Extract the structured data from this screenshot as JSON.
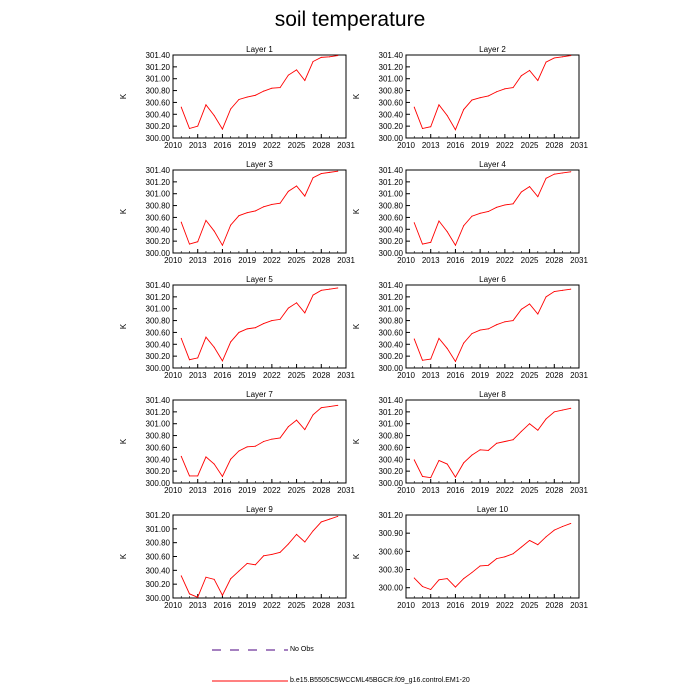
{
  "title": "soil temperature",
  "legend": {
    "obs_label": "No Obs",
    "obs_color": "#4b0082",
    "model_label": "b.e15.B5505C5WCCML45BGCR.f09_g16.control.EM1-20",
    "model_color": "#ff0000"
  },
  "chart_data": [
    {
      "type": "line",
      "title": "Layer 1",
      "ylabel": "K",
      "xlim": [
        2010,
        2031
      ],
      "ylim": [
        300.0,
        301.4
      ],
      "xticks": [
        "2010",
        "2013",
        "2016",
        "2019",
        "2022",
        "2025",
        "2028",
        "2031"
      ],
      "yticks": [
        "300.00",
        "300.20",
        "300.40",
        "300.60",
        "300.80",
        "301.00",
        "301.20",
        "301.40"
      ],
      "ytick_values": [
        300.0,
        300.2,
        300.4,
        300.6,
        300.8,
        301.0,
        301.2,
        301.4
      ],
      "x": [
        2011,
        2012,
        2013,
        2014,
        2015,
        2016,
        2017,
        2018,
        2019,
        2020,
        2021,
        2022,
        2023,
        2024,
        2025,
        2026,
        2027,
        2028,
        2029,
        2030
      ],
      "series": [
        {
          "values": [
            300.52,
            300.16,
            300.2,
            300.56,
            300.38,
            300.15,
            300.49,
            300.65,
            300.69,
            300.72,
            300.79,
            300.84,
            300.85,
            301.06,
            301.15,
            300.97,
            301.29,
            301.36,
            301.37,
            301.39
          ]
        }
      ]
    },
    {
      "type": "line",
      "title": "Layer 2",
      "ylabel": "K",
      "xlim": [
        2010,
        2031
      ],
      "ylim": [
        300.0,
        301.4
      ],
      "xticks": [
        "2010",
        "2013",
        "2016",
        "2019",
        "2022",
        "2025",
        "2028",
        "2031"
      ],
      "yticks": [
        "300.00",
        "300.20",
        "300.40",
        "300.60",
        "300.80",
        "301.00",
        "301.20",
        "301.40"
      ],
      "ytick_values": [
        300.0,
        300.2,
        300.4,
        300.6,
        300.8,
        301.0,
        301.2,
        301.4
      ],
      "x": [
        2011,
        2012,
        2013,
        2014,
        2015,
        2016,
        2017,
        2018,
        2019,
        2020,
        2021,
        2022,
        2023,
        2024,
        2025,
        2026,
        2027,
        2028,
        2029,
        2030
      ],
      "series": [
        {
          "values": [
            300.52,
            300.16,
            300.19,
            300.56,
            300.38,
            300.14,
            300.48,
            300.64,
            300.68,
            300.71,
            300.78,
            300.83,
            300.85,
            301.05,
            301.14,
            300.97,
            301.28,
            301.35,
            301.37,
            301.39
          ]
        }
      ]
    },
    {
      "type": "line",
      "title": "Layer 3",
      "ylabel": "K",
      "xlim": [
        2010,
        2031
      ],
      "ylim": [
        300.0,
        301.4
      ],
      "xticks": [
        "2010",
        "2013",
        "2016",
        "2019",
        "2022",
        "2025",
        "2028",
        "2031"
      ],
      "yticks": [
        "300.00",
        "300.20",
        "300.40",
        "300.60",
        "300.80",
        "301.00",
        "301.20",
        "301.40"
      ],
      "ytick_values": [
        300.0,
        300.2,
        300.4,
        300.6,
        300.8,
        301.0,
        301.2,
        301.4
      ],
      "x": [
        2011,
        2012,
        2013,
        2014,
        2015,
        2016,
        2017,
        2018,
        2019,
        2020,
        2021,
        2022,
        2023,
        2024,
        2025,
        2026,
        2027,
        2028,
        2029,
        2030
      ],
      "series": [
        {
          "values": [
            300.52,
            300.15,
            300.19,
            300.55,
            300.37,
            300.13,
            300.47,
            300.63,
            300.68,
            300.71,
            300.78,
            300.82,
            300.84,
            301.04,
            301.13,
            300.96,
            301.27,
            301.34,
            301.36,
            301.38
          ]
        }
      ]
    },
    {
      "type": "line",
      "title": "Layer 4",
      "ylabel": "K",
      "xlim": [
        2010,
        2031
      ],
      "ylim": [
        300.0,
        301.4
      ],
      "xticks": [
        "2010",
        "2013",
        "2016",
        "2019",
        "2022",
        "2025",
        "2028",
        "2031"
      ],
      "yticks": [
        "300.00",
        "300.20",
        "300.40",
        "300.60",
        "300.80",
        "301.00",
        "301.20",
        "301.40"
      ],
      "ytick_values": [
        300.0,
        300.2,
        300.4,
        300.6,
        300.8,
        301.0,
        301.2,
        301.4
      ],
      "x": [
        2011,
        2012,
        2013,
        2014,
        2015,
        2016,
        2017,
        2018,
        2019,
        2020,
        2021,
        2022,
        2023,
        2024,
        2025,
        2026,
        2027,
        2028,
        2029,
        2030
      ],
      "series": [
        {
          "values": [
            300.51,
            300.15,
            300.18,
            300.54,
            300.36,
            300.13,
            300.46,
            300.62,
            300.67,
            300.7,
            300.77,
            300.81,
            300.83,
            301.03,
            301.12,
            300.95,
            301.26,
            301.33,
            301.35,
            301.37
          ]
        }
      ]
    },
    {
      "type": "line",
      "title": "Layer 5",
      "ylabel": "K",
      "xlim": [
        2010,
        2031
      ],
      "ylim": [
        300.0,
        301.4
      ],
      "xticks": [
        "2010",
        "2013",
        "2016",
        "2019",
        "2022",
        "2025",
        "2028",
        "2031"
      ],
      "yticks": [
        "300.00",
        "300.20",
        "300.40",
        "300.60",
        "300.80",
        "301.00",
        "301.20",
        "301.40"
      ],
      "ytick_values": [
        300.0,
        300.2,
        300.4,
        300.6,
        300.8,
        301.0,
        301.2,
        301.4
      ],
      "x": [
        2011,
        2012,
        2013,
        2014,
        2015,
        2016,
        2017,
        2018,
        2019,
        2020,
        2021,
        2022,
        2023,
        2024,
        2025,
        2026,
        2027,
        2028,
        2029,
        2030
      ],
      "series": [
        {
          "values": [
            300.5,
            300.14,
            300.17,
            300.52,
            300.35,
            300.12,
            300.44,
            300.6,
            300.66,
            300.68,
            300.75,
            300.8,
            300.82,
            301.01,
            301.1,
            300.93,
            301.23,
            301.31,
            301.33,
            301.35
          ]
        }
      ]
    },
    {
      "type": "line",
      "title": "Layer 6",
      "ylabel": "K",
      "xlim": [
        2010,
        2031
      ],
      "ylim": [
        300.0,
        301.4
      ],
      "xticks": [
        "2010",
        "2013",
        "2016",
        "2019",
        "2022",
        "2025",
        "2028",
        "2031"
      ],
      "yticks": [
        "300.00",
        "300.20",
        "300.40",
        "300.60",
        "300.80",
        "301.00",
        "301.20",
        "301.40"
      ],
      "ytick_values": [
        300.0,
        300.2,
        300.4,
        300.6,
        300.8,
        301.0,
        301.2,
        301.4
      ],
      "x": [
        2011,
        2012,
        2013,
        2014,
        2015,
        2016,
        2017,
        2018,
        2019,
        2020,
        2021,
        2022,
        2023,
        2024,
        2025,
        2026,
        2027,
        2028,
        2029,
        2030
      ],
      "series": [
        {
          "values": [
            300.49,
            300.13,
            300.15,
            300.5,
            300.33,
            300.11,
            300.42,
            300.58,
            300.64,
            300.66,
            300.73,
            300.78,
            300.8,
            300.99,
            301.08,
            300.91,
            301.2,
            301.29,
            301.31,
            301.33
          ]
        }
      ]
    },
    {
      "type": "line",
      "title": "Layer 7",
      "ylabel": "K",
      "xlim": [
        2010,
        2031
      ],
      "ylim": [
        300.0,
        301.4
      ],
      "xticks": [
        "2010",
        "2013",
        "2016",
        "2019",
        "2022",
        "2025",
        "2028",
        "2031"
      ],
      "yticks": [
        "300.00",
        "300.20",
        "300.40",
        "300.60",
        "300.80",
        "301.00",
        "301.20",
        "301.40"
      ],
      "ytick_values": [
        300.0,
        300.2,
        300.4,
        300.6,
        300.8,
        301.0,
        301.2,
        301.4
      ],
      "x": [
        2011,
        2012,
        2013,
        2014,
        2015,
        2016,
        2017,
        2018,
        2019,
        2020,
        2021,
        2022,
        2023,
        2024,
        2025,
        2026,
        2027,
        2028,
        2029,
        2030
      ],
      "series": [
        {
          "values": [
            300.45,
            300.12,
            300.12,
            300.44,
            300.32,
            300.11,
            300.4,
            300.54,
            300.61,
            300.62,
            300.7,
            300.74,
            300.76,
            300.95,
            301.06,
            300.9,
            301.15,
            301.27,
            301.29,
            301.31
          ]
        }
      ]
    },
    {
      "type": "line",
      "title": "Layer 8",
      "ylabel": "K",
      "xlim": [
        2010,
        2031
      ],
      "ylim": [
        300.0,
        301.4
      ],
      "xticks": [
        "2010",
        "2013",
        "2016",
        "2019",
        "2022",
        "2025",
        "2028",
        "2031"
      ],
      "yticks": [
        "300.00",
        "300.20",
        "300.40",
        "300.60",
        "300.80",
        "301.00",
        "301.20",
        "301.40"
      ],
      "ytick_values": [
        300.0,
        300.2,
        300.4,
        300.6,
        300.8,
        301.0,
        301.2,
        301.4
      ],
      "x": [
        2011,
        2012,
        2013,
        2014,
        2015,
        2016,
        2017,
        2018,
        2019,
        2020,
        2021,
        2022,
        2023,
        2024,
        2025,
        2026,
        2027,
        2028,
        2029,
        2030
      ],
      "series": [
        {
          "values": [
            300.39,
            300.11,
            300.09,
            300.38,
            300.32,
            300.1,
            300.34,
            300.47,
            300.56,
            300.55,
            300.67,
            300.7,
            300.73,
            300.87,
            301.0,
            300.89,
            301.08,
            301.2,
            301.23,
            301.26
          ]
        }
      ]
    },
    {
      "type": "line",
      "title": "Layer 9",
      "ylabel": "K",
      "xlim": [
        2010,
        2031
      ],
      "ylim": [
        300.0,
        301.2
      ],
      "xticks": [
        "2010",
        "2013",
        "2016",
        "2019",
        "2022",
        "2025",
        "2028",
        "2031"
      ],
      "yticks": [
        "300.00",
        "300.20",
        "300.40",
        "300.60",
        "300.80",
        "301.00",
        "301.20"
      ],
      "ytick_values": [
        300.0,
        300.2,
        300.4,
        300.6,
        300.8,
        301.0,
        301.2
      ],
      "x": [
        2011,
        2012,
        2013,
        2014,
        2015,
        2016,
        2017,
        2018,
        2019,
        2020,
        2021,
        2022,
        2023,
        2024,
        2025,
        2026,
        2027,
        2028,
        2029,
        2030
      ],
      "series": [
        {
          "values": [
            300.32,
            300.06,
            300.01,
            300.3,
            300.27,
            300.04,
            300.28,
            300.39,
            300.5,
            300.48,
            300.61,
            300.63,
            300.66,
            300.78,
            300.92,
            300.81,
            300.97,
            301.1,
            301.14,
            301.18
          ]
        }
      ]
    },
    {
      "type": "line",
      "title": "Layer 10",
      "ylabel": "K",
      "xlim": [
        2010,
        2031
      ],
      "ylim": [
        299.83,
        301.2
      ],
      "xticks": [
        "2010",
        "2013",
        "2016",
        "2019",
        "2022",
        "2025",
        "2028",
        "2031"
      ],
      "yticks": [
        "300.00",
        "300.30",
        "300.60",
        "300.90",
        "301.20"
      ],
      "ytick_values": [
        300.0,
        300.3,
        300.6,
        300.9,
        301.2
      ],
      "x": [
        2011,
        2012,
        2013,
        2014,
        2015,
        2016,
        2017,
        2018,
        2019,
        2020,
        2021,
        2022,
        2023,
        2024,
        2025,
        2026,
        2027,
        2028,
        2029,
        2030
      ],
      "series": [
        {
          "values": [
            300.16,
            300.02,
            299.97,
            300.13,
            300.15,
            300.01,
            300.15,
            300.25,
            300.36,
            300.37,
            300.48,
            300.51,
            300.56,
            300.67,
            300.78,
            300.71,
            300.84,
            300.95,
            301.01,
            301.06
          ]
        }
      ]
    }
  ]
}
